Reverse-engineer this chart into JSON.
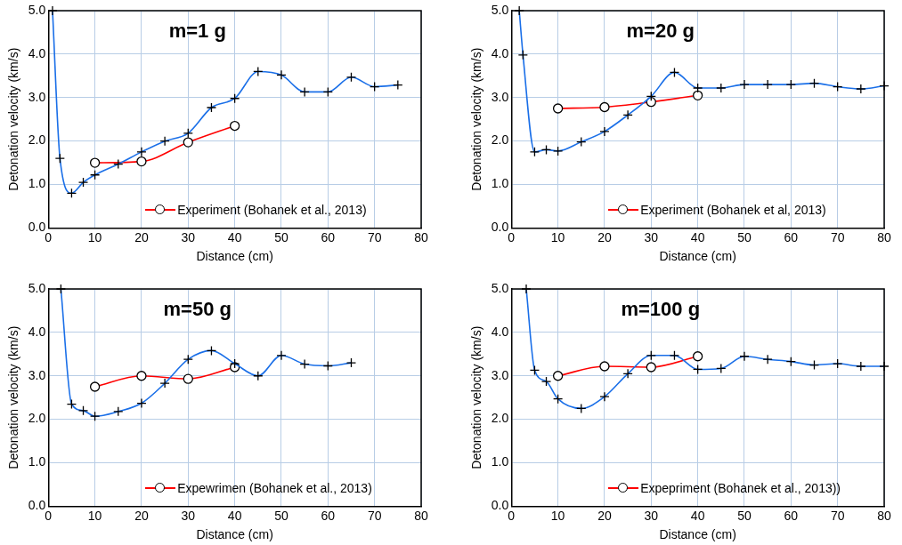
{
  "chart_data": [
    {
      "type": "line",
      "title": "m=1 g",
      "xlabel": "Distance (cm)",
      "ylabel": "Detonation velocity (km/s)",
      "xlim": [
        0,
        80
      ],
      "xticks": [
        0,
        10,
        20,
        30,
        40,
        50,
        60,
        70,
        80
      ],
      "ylim": [
        0,
        5
      ],
      "yticks": [
        {
          "value": 0,
          "label": "0.0"
        },
        {
          "value": 1,
          "label": "1.0"
        },
        {
          "value": 2,
          "label": "2.0"
        },
        {
          "value": 3,
          "label": "3.0"
        },
        {
          "value": 4,
          "label": "4.0"
        },
        {
          "value": 5,
          "label": "5.0"
        }
      ],
      "grid": true,
      "legend": "bottom",
      "series": [
        {
          "color": "#1a6fe8",
          "marker": "cross",
          "x": [
            0.9,
            2.5,
            5,
            7.5,
            10,
            15,
            20,
            25,
            30,
            35,
            40,
            45,
            50,
            55,
            60,
            65,
            70,
            75
          ],
          "values": [
            5.0,
            1.6,
            0.8,
            1.05,
            1.22,
            1.47,
            1.75,
            2.0,
            2.18,
            2.77,
            2.98,
            3.6,
            3.52,
            3.13,
            3.13,
            3.47,
            3.25,
            3.29
          ]
        },
        {
          "name": "Experiment (Bohanek et al., 2013)",
          "color": "#ff0000",
          "marker": "circle",
          "x": [
            10,
            20,
            30,
            40
          ],
          "values": [
            1.5,
            1.53,
            1.97,
            2.35
          ]
        }
      ]
    },
    {
      "type": "line",
      "title": "m=20 g",
      "xlabel": "Distance (cm)",
      "ylabel": "Detonation velocity (km/s)",
      "xlim": [
        0,
        80
      ],
      "xticks": [
        0,
        10,
        20,
        30,
        40,
        50,
        60,
        70,
        80
      ],
      "ylim": [
        0,
        5
      ],
      "yticks": [
        {
          "value": 0,
          "label": "0.0"
        },
        {
          "value": 1,
          "label": "1.0"
        },
        {
          "value": 2,
          "label": "2.0"
        },
        {
          "value": 3,
          "label": "3.0"
        },
        {
          "value": 4,
          "label": "4.0"
        },
        {
          "value": 5,
          "label": "5.0"
        }
      ],
      "grid": true,
      "legend": "bottom",
      "series": [
        {
          "color": "#1a6fe8",
          "marker": "cross",
          "x": [
            1.7,
            2.5,
            5,
            7.5,
            10,
            15,
            20,
            25,
            30,
            35,
            40,
            45,
            50,
            55,
            60,
            65,
            70,
            75,
            80
          ],
          "values": [
            5.0,
            3.98,
            1.75,
            1.8,
            1.77,
            1.98,
            2.22,
            2.6,
            3.03,
            3.58,
            3.22,
            3.22,
            3.3,
            3.3,
            3.3,
            3.33,
            3.25,
            3.2,
            3.27
          ]
        },
        {
          "name": "Experiment (Bohanek et al, 2013)",
          "color": "#ff0000",
          "marker": "circle",
          "x": [
            10,
            20,
            30,
            40
          ],
          "values": [
            2.75,
            2.78,
            2.9,
            3.05
          ]
        }
      ]
    },
    {
      "type": "line",
      "title": "m=50 g",
      "xlabel": "Distance (cm)",
      "ylabel": "Detonation velocity (km/s)",
      "xlim": [
        0,
        80
      ],
      "xticks": [
        0,
        10,
        20,
        30,
        40,
        50,
        60,
        70,
        80
      ],
      "ylim": [
        0,
        5
      ],
      "yticks": [
        {
          "value": 0,
          "label": "0.0"
        },
        {
          "value": 1,
          "label": "1.0"
        },
        {
          "value": 2,
          "label": "2.0"
        },
        {
          "value": 3,
          "label": "3.0"
        },
        {
          "value": 4,
          "label": "4.0"
        },
        {
          "value": 5,
          "label": "5.0"
        }
      ],
      "grid": true,
      "legend": "bottom",
      "series": [
        {
          "color": "#1a6fe8",
          "marker": "cross",
          "x": [
            2.7,
            5,
            7.5,
            10,
            15,
            20,
            25,
            30,
            35,
            40,
            45,
            50,
            55,
            60,
            65
          ],
          "values": [
            5.0,
            2.35,
            2.2,
            2.07,
            2.18,
            2.37,
            2.83,
            3.38,
            3.58,
            3.28,
            3.0,
            3.47,
            3.27,
            3.23,
            3.3
          ]
        },
        {
          "name": "Expewrimen (Bohanek et al., 2013)",
          "color": "#ff0000",
          "marker": "circle",
          "x": [
            10,
            20,
            30,
            40
          ],
          "values": [
            2.75,
            3.0,
            2.93,
            3.2
          ]
        }
      ]
    },
    {
      "type": "line",
      "title": "m=100 g",
      "xlabel": "Distance (cm)",
      "ylabel": "Detonation velocity (km/s)",
      "xlim": [
        0,
        80
      ],
      "xticks": [
        0,
        10,
        20,
        30,
        40,
        50,
        60,
        70,
        80
      ],
      "ylim": [
        0,
        5
      ],
      "yticks": [
        {
          "value": 0,
          "label": "0.0"
        },
        {
          "value": 1,
          "label": "1.0"
        },
        {
          "value": 2,
          "label": "2.0"
        },
        {
          "value": 3,
          "label": "3.0"
        },
        {
          "value": 4,
          "label": "4.0"
        },
        {
          "value": 5,
          "label": "5.0"
        }
      ],
      "grid": true,
      "legend": "bottom",
      "series": [
        {
          "color": "#1a6fe8",
          "marker": "cross",
          "x": [
            3.2,
            5,
            7.5,
            10,
            15,
            20,
            25,
            30,
            35,
            40,
            45,
            50,
            55,
            60,
            65,
            70,
            75,
            80
          ],
          "values": [
            5.0,
            3.13,
            2.87,
            2.47,
            2.25,
            2.52,
            3.05,
            3.47,
            3.47,
            3.15,
            3.17,
            3.45,
            3.38,
            3.33,
            3.25,
            3.28,
            3.22,
            3.22
          ]
        },
        {
          "name": "Expepriment (Bohanek et al., 2013))",
          "color": "#ff0000",
          "marker": "circle",
          "x": [
            10,
            20,
            30,
            40
          ],
          "values": [
            3.0,
            3.22,
            3.2,
            3.45
          ]
        }
      ]
    }
  ]
}
